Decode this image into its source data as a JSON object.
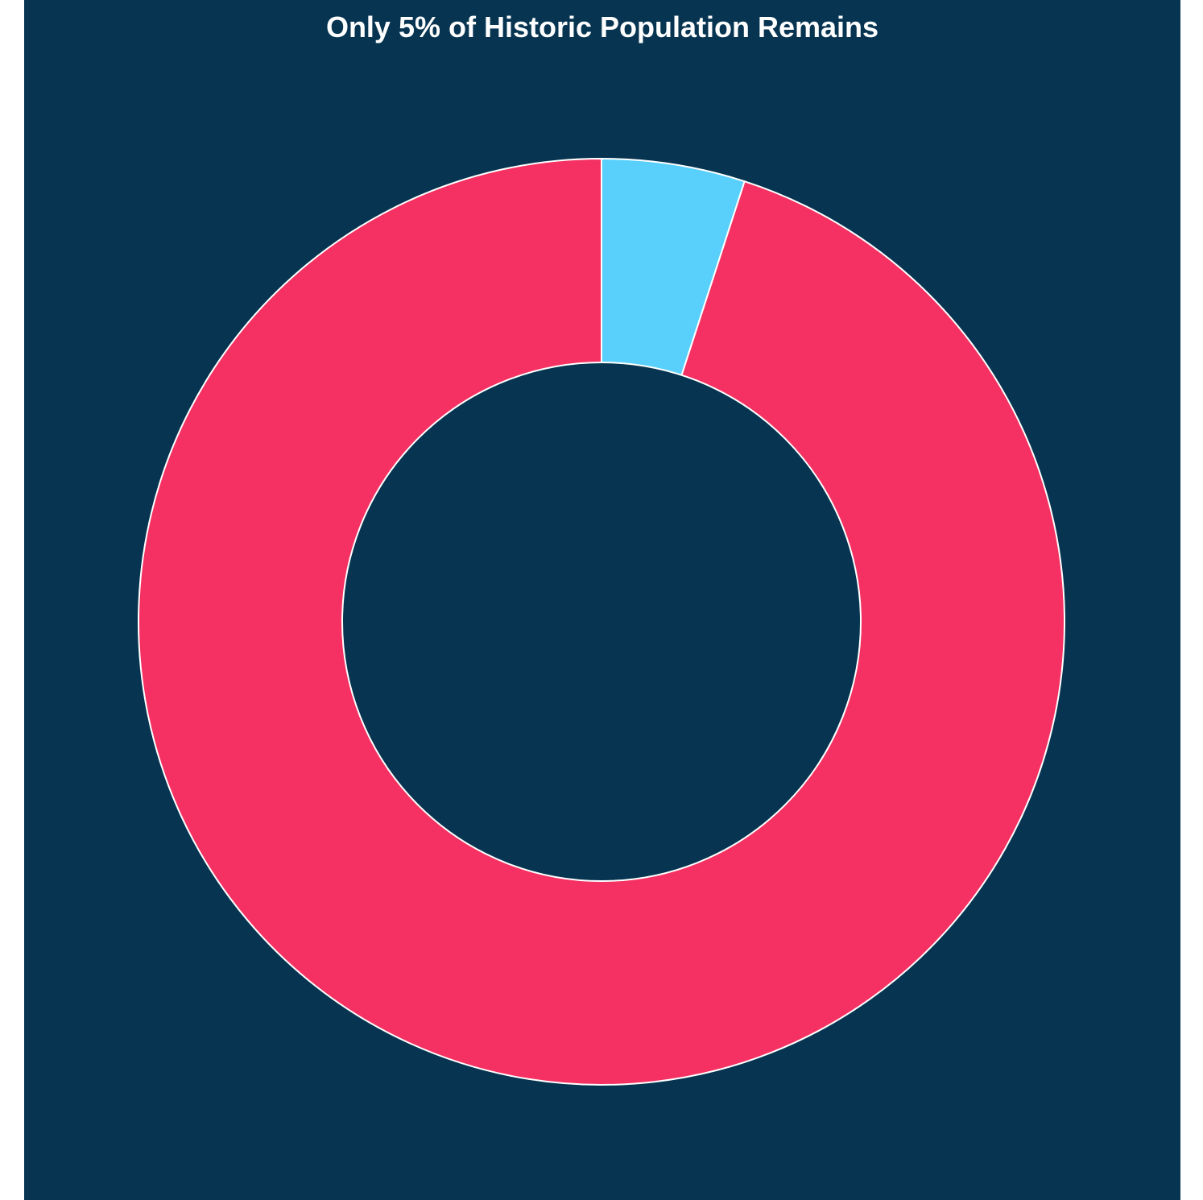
{
  "colors": {
    "background": "#073551",
    "remaining": "#58D0FB",
    "lost": "#F43162",
    "stroke": "#ffffff",
    "title": "#ffffff"
  },
  "chart_data": {
    "type": "pie",
    "variant": "donut",
    "title": "Only 5% of Historic Population Remains",
    "start_angle_deg": 0,
    "direction": "clockwise",
    "hole_fraction": 0.56,
    "legend": "none",
    "slices": [
      {
        "value": 5,
        "color": "#58D0FB"
      },
      {
        "value": 95,
        "color": "#F43162"
      }
    ]
  }
}
